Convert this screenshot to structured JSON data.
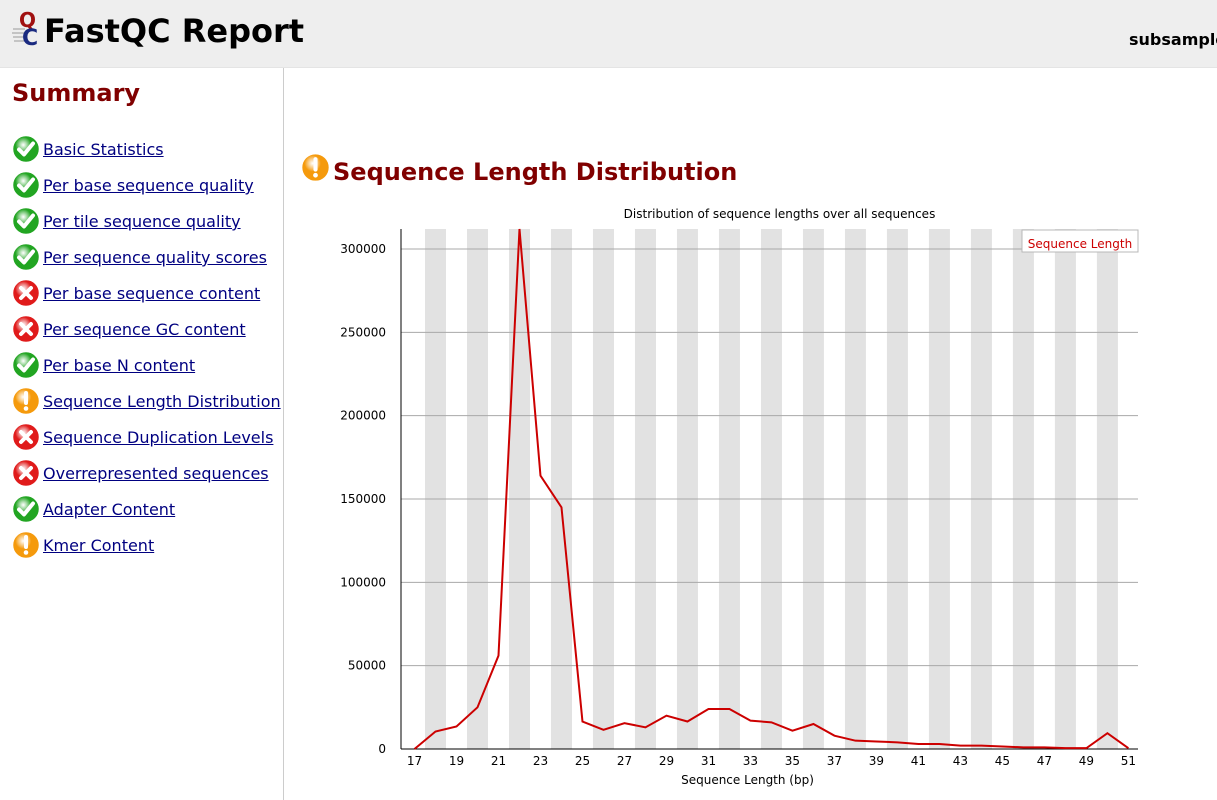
{
  "header": {
    "title": "FastQC Report",
    "filename": "subsample"
  },
  "sidebar": {
    "title": "Summary",
    "modules": [
      {
        "label": "Basic Statistics",
        "status": "pass"
      },
      {
        "label": "Per base sequence quality",
        "status": "pass"
      },
      {
        "label": "Per tile sequence quality",
        "status": "pass"
      },
      {
        "label": "Per sequence quality scores",
        "status": "pass"
      },
      {
        "label": "Per base sequence content",
        "status": "fail"
      },
      {
        "label": "Per sequence GC content",
        "status": "fail"
      },
      {
        "label": "Per base N content",
        "status": "pass"
      },
      {
        "label": "Sequence Length Distribution",
        "status": "warn"
      },
      {
        "label": "Sequence Duplication Levels",
        "status": "fail"
      },
      {
        "label": "Overrepresented sequences",
        "status": "fail"
      },
      {
        "label": "Adapter Content",
        "status": "pass"
      },
      {
        "label": "Kmer Content",
        "status": "warn"
      }
    ]
  },
  "icons": {
    "logo": "fastqc-logo",
    "pass": "check-icon",
    "fail": "cross-icon",
    "warn": "exclamation-icon"
  },
  "colors": {
    "pass": "#22a522",
    "fail": "#e01b1b",
    "warn": "#f59a0c",
    "heading": "#800000",
    "link": "#000080",
    "series": "#cc0000"
  },
  "section": {
    "title": "Sequence Length Distribution",
    "status": "warn"
  },
  "chart_data": {
    "type": "line",
    "title": "Distribution of sequence lengths over all sequences",
    "xlabel": "Sequence Length (bp)",
    "ylabel": "",
    "x": [
      17,
      18,
      19,
      20,
      21,
      22,
      23,
      24,
      25,
      26,
      27,
      28,
      29,
      30,
      31,
      32,
      33,
      34,
      35,
      36,
      37,
      38,
      39,
      40,
      41,
      42,
      43,
      44,
      45,
      46,
      47,
      48,
      49,
      50,
      51
    ],
    "xtick_labels": [
      "17",
      "19",
      "21",
      "23",
      "25",
      "27",
      "29",
      "31",
      "33",
      "35",
      "37",
      "39",
      "41",
      "43",
      "45",
      "47",
      "49",
      "51"
    ],
    "series": [
      {
        "name": "Sequence Length",
        "color": "#cc0000",
        "values": [
          0,
          10500,
          13500,
          25000,
          56000,
          312000,
          164000,
          145000,
          16500,
          11500,
          15500,
          13000,
          20000,
          16500,
          24000,
          24000,
          17000,
          16000,
          11000,
          15000,
          8000,
          5000,
          4500,
          4000,
          3000,
          3000,
          2000,
          2000,
          1500,
          1000,
          1000,
          500,
          500,
          9500,
          500
        ]
      }
    ],
    "ylim": [
      0,
      312000
    ],
    "yticks": [
      0,
      50000,
      100000,
      150000,
      200000,
      250000,
      300000
    ],
    "grid": true,
    "legend": "top-right"
  }
}
